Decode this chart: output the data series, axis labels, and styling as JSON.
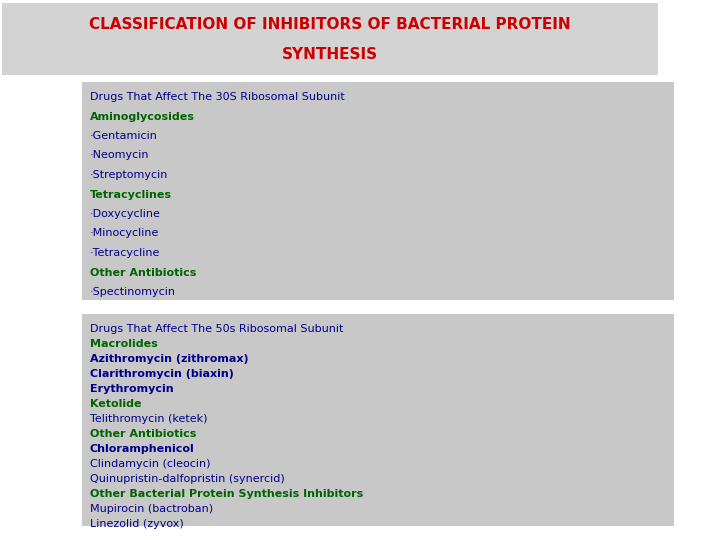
{
  "title_line1": "CLASSIFICATION OF INHIBITORS OF BACTERIAL PROTEIN",
  "title_line2": "SYNTHESIS",
  "title_color": "#CC0000",
  "title_bg": "#D3D3D3",
  "panel_bg": "#C8C8C8",
  "outer_bg": "#FFFFFF",
  "section1": {
    "header": "Drugs That Affect The 30S Ribosomal Subunit",
    "header_color": "#00008B",
    "lines": [
      {
        "text": "Aminoglycosides",
        "color": "#006400",
        "bold": true
      },
      {
        "text": "·Gentamicin",
        "color": "#00008B",
        "bold": false
      },
      {
        "text": "·Neomycin",
        "color": "#00008B",
        "bold": false
      },
      {
        "text": "·Streptomycin",
        "color": "#00008B",
        "bold": false
      },
      {
        "text": "Tetracyclines",
        "color": "#006400",
        "bold": true
      },
      {
        "text": "·Doxycycline",
        "color": "#00008B",
        "bold": false
      },
      {
        "text": "·Minocycline",
        "color": "#00008B",
        "bold": false
      },
      {
        "text": "·Tetracycline",
        "color": "#00008B",
        "bold": false
      },
      {
        "text": "Other Antibiotics",
        "color": "#006400",
        "bold": true
      },
      {
        "text": "·Spectinomycin",
        "color": "#00008B",
        "bold": false
      }
    ]
  },
  "section2": {
    "header": "Drugs That Affect The 50s Ribosomal Subunit",
    "header_color": "#00008B",
    "lines": [
      {
        "text": "Macrolides",
        "color": "#006400",
        "bold": true
      },
      {
        "text": "Azithromycin (zithromax)",
        "color": "#00008B",
        "bold": true
      },
      {
        "text": "Clarithromycin (biaxin)",
        "color": "#00008B",
        "bold": true
      },
      {
        "text": "Erythromycin",
        "color": "#00008B",
        "bold": true
      },
      {
        "text": "Ketolide",
        "color": "#006400",
        "bold": true
      },
      {
        "text": "Telithromycin (ketek)",
        "color": "#00008B",
        "bold": false
      },
      {
        "text": "Other Antibiotics",
        "color": "#006400",
        "bold": true
      },
      {
        "text": "Chloramphenicol",
        "color": "#00008B",
        "bold": true
      },
      {
        "text": "Clindamycin (cleocin)",
        "color": "#00008B",
        "bold": false
      },
      {
        "text": "Quinupristin-dalfopristin (synercid)",
        "color": "#00008B",
        "bold": false
      },
      {
        "text": "Other Bacterial Protein Synthesis Inhibitors",
        "color": "#006400",
        "bold": true
      },
      {
        "text": "Mupirocin (bactroban)",
        "color": "#00008B",
        "bold": false
      },
      {
        "text": "Linezolid (zyvox)",
        "color": "#00008B",
        "bold": false
      }
    ]
  },
  "title_fontsize": 11,
  "body_fontsize": 8,
  "header_fontsize": 8
}
